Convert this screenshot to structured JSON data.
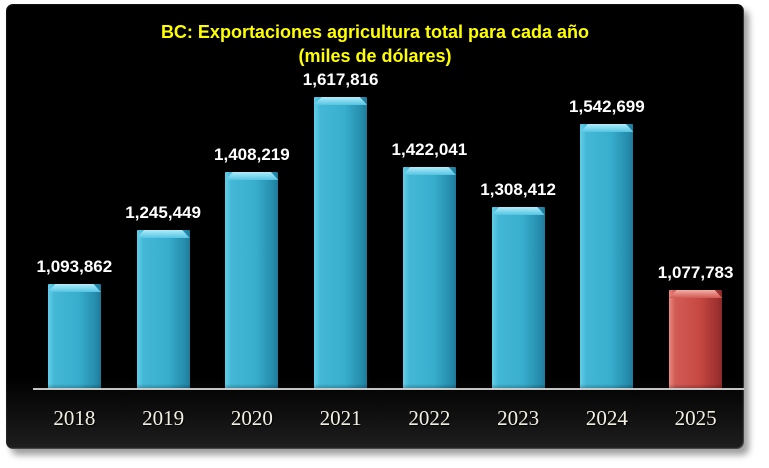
{
  "chart_data": {
    "type": "bar",
    "title": "BC: Exportaciones agricultura total para cada año",
    "subtitle": "(miles de dólares)",
    "categories": [
      "2018",
      "2019",
      "2020",
      "2021",
      "2022",
      "2023",
      "2024",
      "2025"
    ],
    "values": [
      1093862,
      1245449,
      1408219,
      1617816,
      1422041,
      1308412,
      1542699,
      1077783
    ],
    "value_labels": [
      "1,093,862",
      "1,245,449",
      "1,408,219",
      "1,617,816",
      "1,422,041",
      "1,308,412",
      "1,542,699",
      "1,077,783"
    ],
    "bar_styles": [
      "cyan",
      "cyan",
      "cyan",
      "cyan",
      "cyan",
      "cyan",
      "cyan",
      "red"
    ],
    "xlabel": "",
    "ylabel": "",
    "ylim": [
      800000,
      1650000
    ],
    "grid": "off",
    "legend": "none"
  },
  "colors": {
    "bar_cyan": "#38AECD",
    "bar_red": "#C74843",
    "title_yellow": "#FFFF00",
    "value_label_white": "#FFFFFF",
    "year_label_cream": "#F2EFE2",
    "axis_line_gray": "#D6D6D6",
    "panel_black": "#000000",
    "page_white": "#FFFFFF"
  }
}
